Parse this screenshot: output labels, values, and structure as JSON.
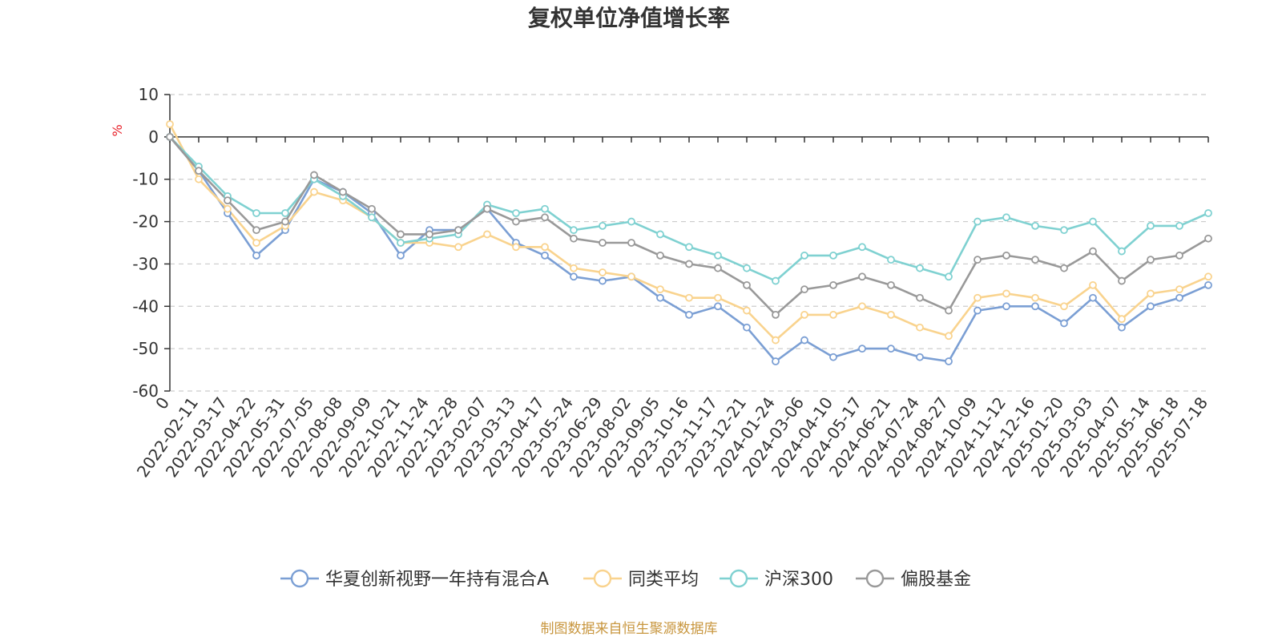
{
  "chart_data": {
    "type": "line",
    "title": "复权单位净值增长率",
    "ylabel": "%",
    "ylim": [
      -60,
      10
    ],
    "yticks": [
      10,
      0,
      -10,
      -20,
      -30,
      -40,
      -50,
      -60
    ],
    "grid": true,
    "legend_position": "bottom",
    "source": "制图数据来自恒生聚源数据库",
    "categories": [
      "0",
      "2022-02-11",
      "2022-03-17",
      "2022-04-22",
      "2022-05-31",
      "2022-07-05",
      "2022-08-08",
      "2022-09-09",
      "2022-10-21",
      "2022-11-24",
      "2022-12-28",
      "2023-02-07",
      "2023-03-13",
      "2023-04-17",
      "2023-05-24",
      "2023-06-29",
      "2023-08-02",
      "2023-09-05",
      "2023-10-16",
      "2023-11-17",
      "2023-12-21",
      "2024-01-24",
      "2024-03-06",
      "2024-04-10",
      "2024-05-17",
      "2024-06-21",
      "2024-07-24",
      "2024-08-27",
      "2024-10-09",
      "2024-11-12",
      "2024-12-16",
      "2025-01-20",
      "2025-03-03",
      "2025-04-07",
      "2025-05-14",
      "2025-06-18",
      "2025-07-18"
    ],
    "series": [
      {
        "name": "华夏创新视野一年持有混合A",
        "color": "#7b9fd4",
        "values": [
          0,
          -8,
          -18,
          -28,
          -22,
          -10,
          -13,
          -18,
          -28,
          -22,
          -22,
          -17,
          -25,
          -28,
          -33,
          -34,
          -33,
          -38,
          -42,
          -40,
          -45,
          -53,
          -48,
          -52,
          -50,
          -50,
          -52,
          -53,
          -41,
          -40,
          -40,
          -44,
          -38,
          -45,
          -40,
          -38,
          -35
        ]
      },
      {
        "name": "同类平均",
        "color": "#f9d38e",
        "values": [
          3,
          -10,
          -17,
          -25,
          -21,
          -13,
          -15,
          -19,
          -25,
          -25,
          -26,
          -23,
          -26,
          -26,
          -31,
          -32,
          -33,
          -36,
          -38,
          -38,
          -41,
          -48,
          -42,
          -42,
          -40,
          -42,
          -45,
          -47,
          -38,
          -37,
          -38,
          -40,
          -35,
          -43,
          -37,
          -36,
          -33
        ]
      },
      {
        "name": "沪深300",
        "color": "#7fd1d1",
        "values": [
          0,
          -7,
          -14,
          -18,
          -18,
          -10,
          -14,
          -19,
          -25,
          -24,
          -23,
          -16,
          -18,
          -17,
          -22,
          -21,
          -20,
          -23,
          -26,
          -28,
          -31,
          -34,
          -28,
          -28,
          -26,
          -29,
          -31,
          -33,
          -20,
          -19,
          -21,
          -22,
          -20,
          -27,
          -21,
          -21,
          -18
        ]
      },
      {
        "name": "偏股基金",
        "color": "#999999",
        "values": [
          0,
          -8,
          -15,
          -22,
          -20,
          -9,
          -13,
          -17,
          -23,
          -23,
          -22,
          -17,
          -20,
          -19,
          -24,
          -25,
          -25,
          -28,
          -30,
          -31,
          -35,
          -42,
          -36,
          -35,
          -33,
          -35,
          -38,
          -41,
          -29,
          -28,
          -29,
          -31,
          -27,
          -34,
          -29,
          -28,
          -24
        ]
      }
    ]
  }
}
